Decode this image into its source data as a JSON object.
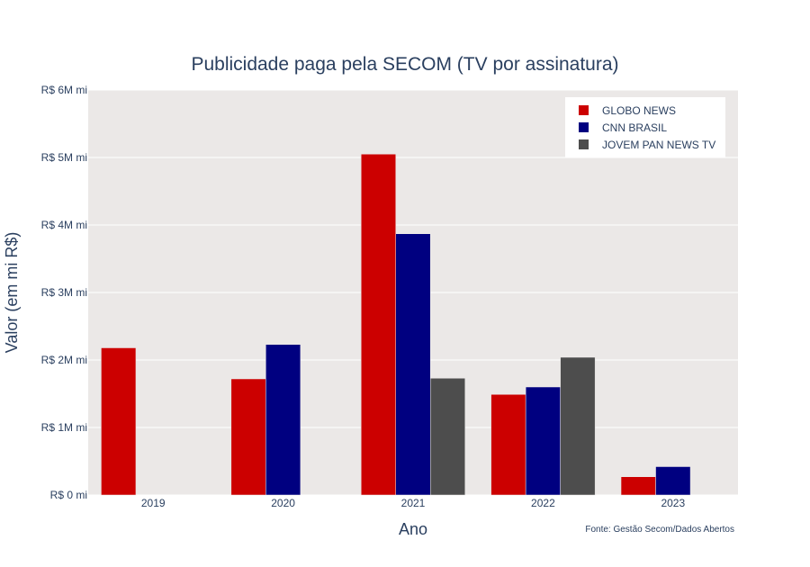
{
  "chart_data": {
    "type": "bar",
    "title": "Publicidade paga pela SECOM (TV por assinatura)",
    "xlabel": "Ano",
    "ylabel": "Valor (em mi R$)",
    "categories": [
      "2019",
      "2020",
      "2021",
      "2022",
      "2023"
    ],
    "ylim": [
      0,
      6
    ],
    "yticks": [
      0,
      1,
      2,
      3,
      4,
      5,
      6
    ],
    "ytick_labels": [
      "R$ 0 mi",
      "R$ 1M mi",
      "R$ 2M mi",
      "R$ 3M mi",
      "R$ 4M mi",
      "R$ 5M mi",
      "R$ 6M mi"
    ],
    "grid": true,
    "legend_position": "top-right",
    "series": [
      {
        "name": "GLOBO NEWS",
        "color": "#cc0000",
        "values": [
          2.18,
          1.72,
          5.05,
          1.49,
          0.27
        ]
      },
      {
        "name": "CNN BRASIL",
        "color": "#000080",
        "values": [
          null,
          2.23,
          3.87,
          1.6,
          0.42
        ]
      },
      {
        "name": "JOVEM PAN NEWS TV",
        "color": "#4d4d4d",
        "values": [
          null,
          null,
          1.73,
          2.04,
          null
        ]
      }
    ],
    "annotation": "Fonte: Gestão Secom/Dados Abertos",
    "plot_bgcolor": "#ebe8e7"
  }
}
